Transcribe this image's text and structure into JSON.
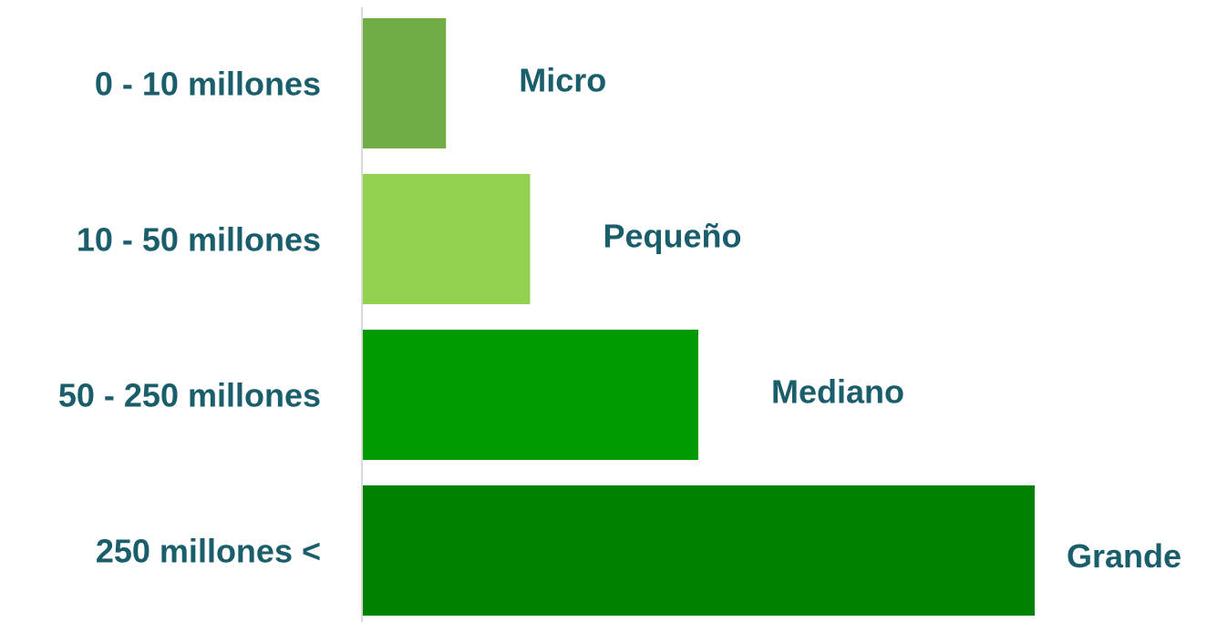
{
  "chart_data": {
    "type": "bar",
    "orientation": "horizontal",
    "categories": [
      "0 - 10 millones",
      "10 - 50 millones",
      "50 - 250 millones",
      "250 millones <"
    ],
    "values": [
      1,
      2,
      4,
      8
    ],
    "bar_labels": [
      "Micro",
      "Pequeño",
      "Mediano",
      "Grande"
    ],
    "colors": [
      "#70ad47",
      "#92d050",
      "#009900",
      "#008000"
    ],
    "xlim": [
      0,
      8
    ],
    "grid": false,
    "legend": "none",
    "title": "",
    "xlabel": "",
    "ylabel": ""
  }
}
